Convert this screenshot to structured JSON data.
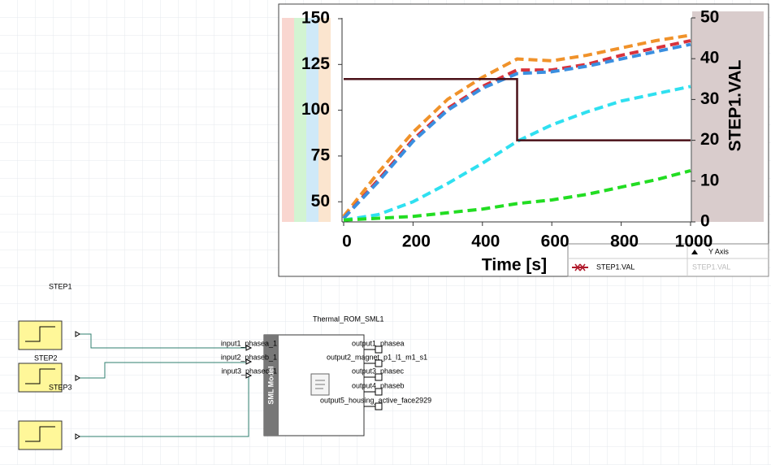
{
  "chart_data": {
    "type": "line",
    "xlabel": "Time [s]",
    "y2label": "STEP1.VAL",
    "xlim": [
      0,
      1000
    ],
    "xticks": [
      0,
      200,
      400,
      600,
      800,
      1000
    ],
    "ylim": [
      39,
      150
    ],
    "yticks": [
      50,
      75,
      100,
      125,
      150
    ],
    "y2lim": [
      0,
      50
    ],
    "y2ticks": [
      0,
      10,
      20,
      30,
      40,
      50
    ],
    "grid": false,
    "series": [
      {
        "color": "#f0922a",
        "dashed": true,
        "x": [
          0,
          100,
          200,
          300,
          400,
          500,
          600,
          700,
          800,
          900,
          1000
        ],
        "values": [
          42,
          66,
          88,
          106,
          118,
          128,
          127,
          130,
          134,
          138,
          141
        ]
      },
      {
        "color": "#d8323c",
        "dashed": true,
        "x": [
          0,
          100,
          200,
          300,
          400,
          500,
          600,
          700,
          800,
          900,
          1000
        ],
        "values": [
          41,
          62,
          84,
          101,
          113,
          122,
          122,
          125,
          130,
          134,
          138
        ]
      },
      {
        "color": "#3a8fe0",
        "dashed": true,
        "x": [
          0,
          100,
          200,
          300,
          400,
          500,
          600,
          700,
          800,
          900,
          1000
        ],
        "values": [
          41,
          61,
          83,
          100,
          112,
          120,
          121,
          124,
          128,
          132,
          136
        ]
      },
      {
        "color": "#2fe0f0",
        "dashed": true,
        "x": [
          0,
          100,
          200,
          300,
          400,
          500,
          600,
          700,
          800,
          900,
          1000
        ],
        "values": [
          40,
          43,
          50,
          60,
          71,
          83,
          92,
          99,
          105,
          109,
          113
        ]
      },
      {
        "color": "#22dd22",
        "dashed": true,
        "x": [
          0,
          100,
          200,
          300,
          400,
          500,
          600,
          700,
          800,
          900,
          1000
        ],
        "values": [
          40,
          41,
          42,
          44,
          46,
          49,
          51,
          54,
          58,
          62,
          67
        ]
      },
      {
        "name": "STEP1.VAL",
        "color": "#4a1018",
        "dashed": false,
        "axis": "y2",
        "x": [
          0,
          500,
          500,
          1000
        ],
        "values": [
          35,
          35,
          20,
          20
        ]
      }
    ],
    "legend_table": {
      "header": "Y Axis",
      "rows": [
        {
          "axis": "STEP1.VAL"
        }
      ]
    }
  },
  "schematic": {
    "sources": [
      {
        "label": "STEP1"
      },
      {
        "label": "STEP2"
      },
      {
        "label": "STEP3"
      }
    ],
    "component": {
      "label": "Thermal_ROM_SML1",
      "type": "SML Model",
      "inputs": [
        "input1_phasea_1",
        "input2_phaseb_1",
        "input3_phasec_1"
      ],
      "outputs": [
        "output1_phasea",
        "output2_magnet_p1_l1_m1_s1",
        "output3_phasec",
        "output4_phaseb",
        "output5_housing_active_face2929"
      ]
    }
  }
}
